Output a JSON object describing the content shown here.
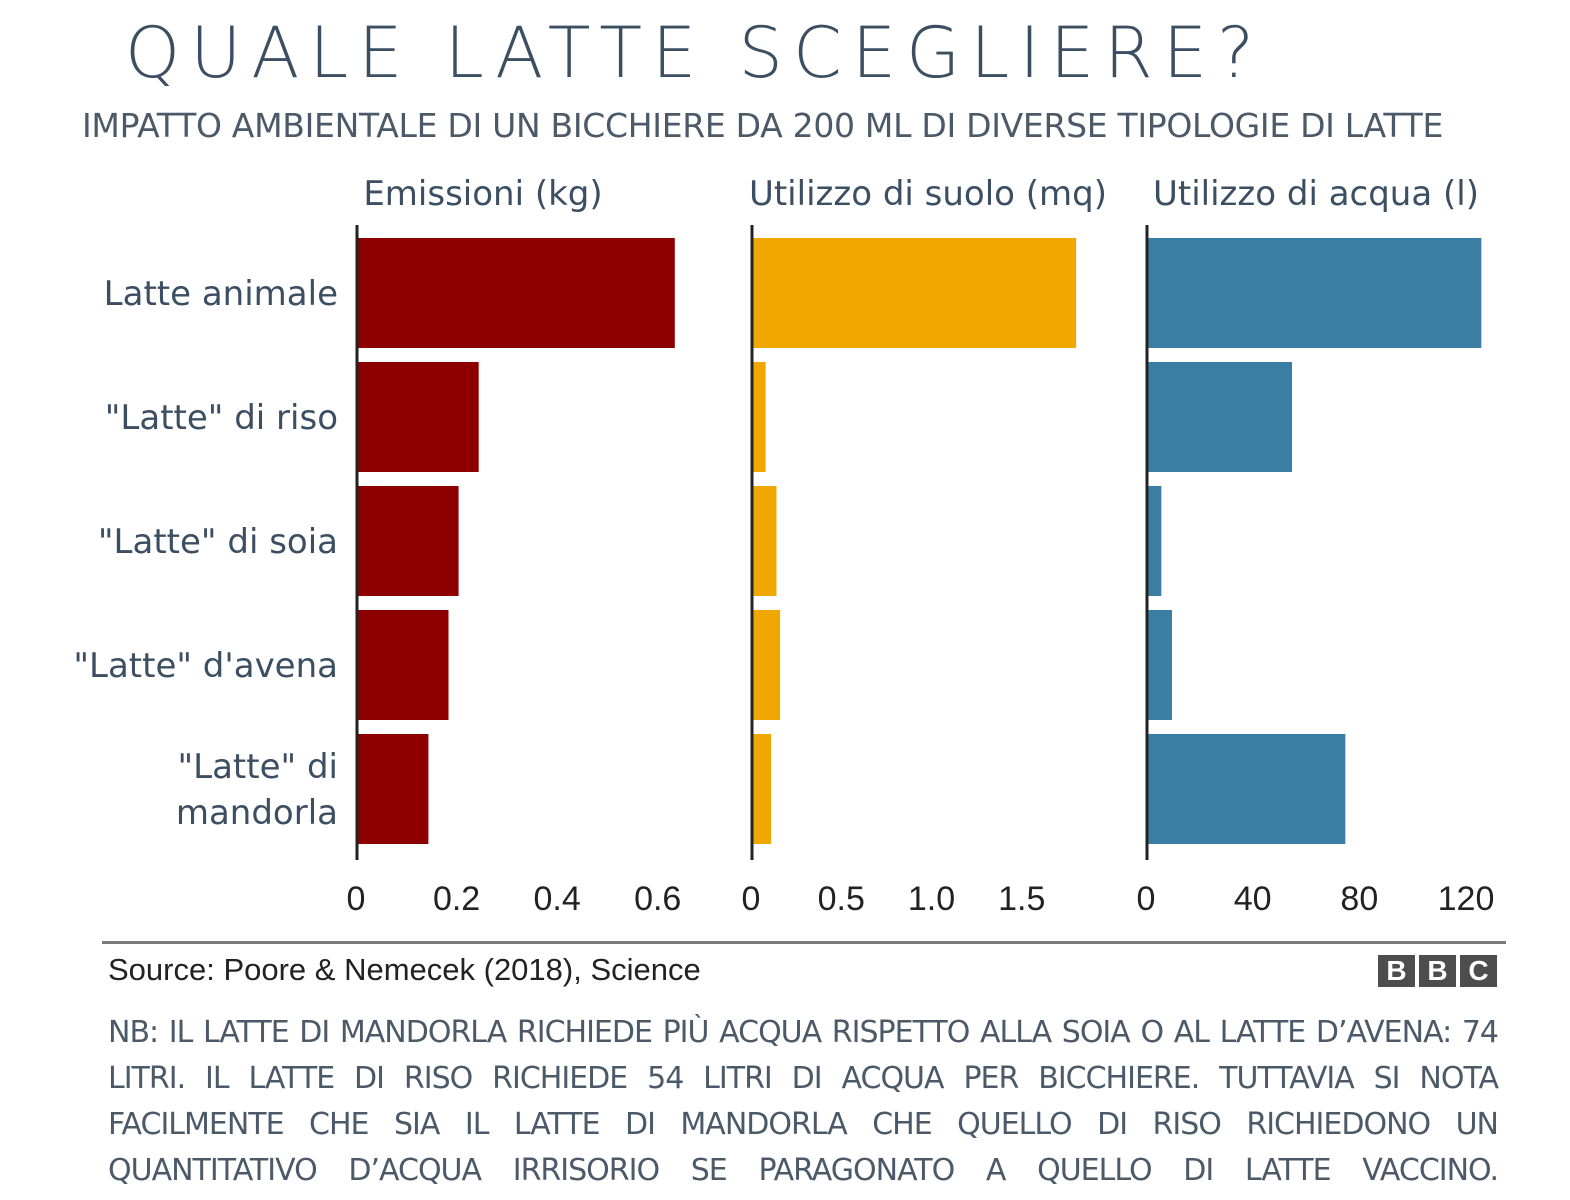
{
  "title": "QUALE LATTE SCEGLIERE?",
  "subtitle": "IMPATTO AMBIENTALE DI UN BICCHIERE DA 200 ML DI DIVERSE TIPOLOGIE DI LATTE",
  "chart_data": {
    "type": "bar",
    "orientation": "horizontal",
    "categories": [
      [
        "Latte animale"
      ],
      [
        "\"Latte\" di riso"
      ],
      [
        "\"Latte\" di soia"
      ],
      [
        "\"Latte\" d'avena"
      ],
      [
        "\"Latte\" di",
        "mandorla"
      ]
    ],
    "series": [
      {
        "name": "Emissioni (kg)",
        "color": "#8e0000",
        "values": [
          0.63,
          0.24,
          0.2,
          0.18,
          0.14
        ],
        "xlim": [
          0,
          0.7
        ],
        "ticks": [
          0,
          0.2,
          0.4,
          0.6
        ],
        "tick_labels": [
          "0",
          "0.2",
          "0.4",
          "0.6"
        ]
      },
      {
        "name": "Utilizzo di suolo (mq)",
        "color": "#f0a800",
        "values": [
          1.79,
          0.07,
          0.13,
          0.15,
          0.1
        ],
        "xlim": [
          0,
          1.95
        ],
        "ticks": [
          0,
          0.5,
          1.0,
          1.5
        ],
        "tick_labels": [
          "0",
          "0.5",
          "1.0",
          "1.5"
        ]
      },
      {
        "name": "Utilizzo di acqua (l)",
        "color": "#3a7fa3",
        "values": [
          125,
          54,
          5,
          9,
          74
        ],
        "xlim": [
          0,
          132
        ],
        "ticks": [
          0,
          40,
          80,
          120
        ],
        "tick_labels": [
          "0",
          "40",
          "80",
          "120"
        ]
      }
    ]
  },
  "source": "Source: Poore & Nemecek (2018), Science",
  "logo": [
    "B",
    "B",
    "C"
  ],
  "note": "NB: IL LATTE DI MANDORLA RICHIEDE PIÙ ACQUA RISPETTO ALLA SOIA O AL LATTE D’AVENA: 74 LITRI. IL LATTE DI RISO RICHIEDE 54 LITRI DI ACQUA PER BICCHIERE. TUTTAVIA SI NOTA FACILMENTE CHE SIA IL LATTE DI MANDORLA CHE QUELLO DI RISO RICHIEDONO UN QUANTITATIVO D’ACQUA IRRISORIO SE PARAGONATO A QUELLO DI LATTE VACCINO."
}
